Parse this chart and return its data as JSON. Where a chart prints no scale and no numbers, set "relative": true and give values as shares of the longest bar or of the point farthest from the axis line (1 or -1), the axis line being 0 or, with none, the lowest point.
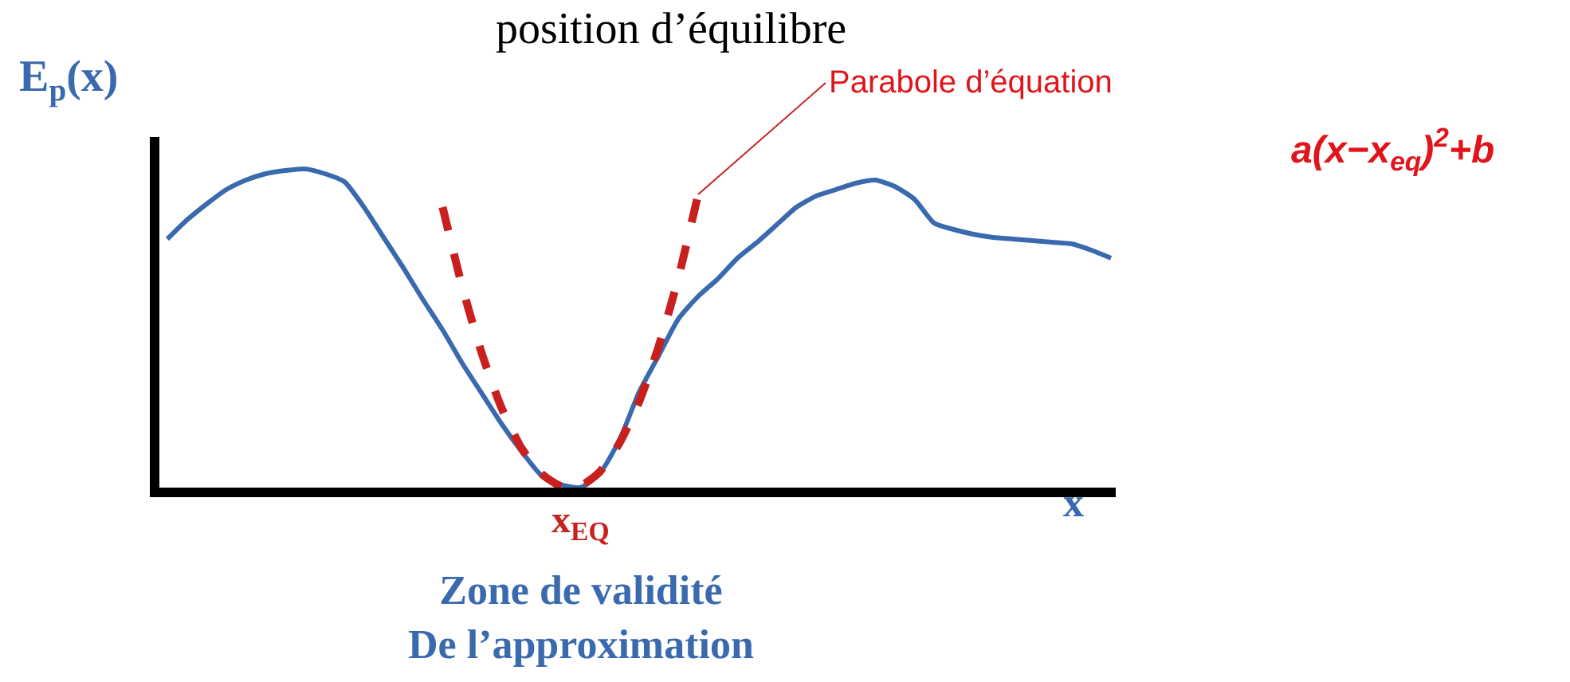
{
  "chart_data": {
    "type": "line",
    "relative": true,
    "title": "position d’équilibre",
    "xlabel": "x",
    "ylabel": "E$_{p}$(x)",
    "categories": [
      null,
      null,
      null,
      null,
      null,
      null,
      null,
      null,
      null,
      null,
      null,
      null,
      null,
      null,
      null,
      null,
      null,
      null,
      null,
      null,
      null,
      null,
      null,
      null,
      null,
      null,
      null,
      null,
      null,
      null,
      null,
      null,
      null,
      null,
      null,
      null,
      null,
      null,
      null,
      null,
      null,
      null,
      null,
      null,
      null,
      null,
      null,
      null,
      null
    ],
    "series": [
      {
        "color": "#3a6aae",
        "line_style": "solid",
        "values": [
          0.78,
          0.84,
          0.89,
          0.935,
          0.965,
          0.985,
          0.995,
          1.0,
          0.985,
          0.96,
          0.88,
          0.785,
          0.69,
          0.59,
          0.495,
          0.39,
          0.295,
          0.2,
          0.115,
          0.04,
          0.01,
          0.0,
          0.045,
          0.15,
          0.3,
          0.415,
          0.53,
          0.6,
          0.655,
          0.72,
          0.77,
          0.825,
          0.88,
          0.915,
          0.935,
          0.955,
          0.965,
          0.945,
          0.905,
          0.83,
          0.81,
          0.795,
          0.785,
          0.78,
          0.775,
          0.77,
          0.765,
          0.745,
          0.72
        ]
      },
      {
        "color": "#c8201e",
        "line_style": "dashed",
        "values": [
          null,
          null,
          null,
          null,
          null,
          null,
          null,
          null,
          null,
          null,
          null,
          null,
          null,
          null,
          0.88,
          0.63,
          0.42,
          0.25,
          0.125,
          0.045,
          0.005,
          0.005,
          0.05,
          0.14,
          0.27,
          0.445,
          0.66,
          0.92,
          null,
          null,
          null,
          null,
          null,
          null,
          null,
          null,
          null,
          null,
          null,
          null,
          null,
          null,
          null,
          null,
          null,
          null,
          null,
          null,
          null
        ]
      }
    ],
    "annotations": [
      "Parabole d’équation",
      "a(x−x$_{eq}$)$^{2}$+b",
      "x$_{EQ}$",
      "Zone de validité\nDe l’approximation"
    ],
    "marker": "none"
  }
}
